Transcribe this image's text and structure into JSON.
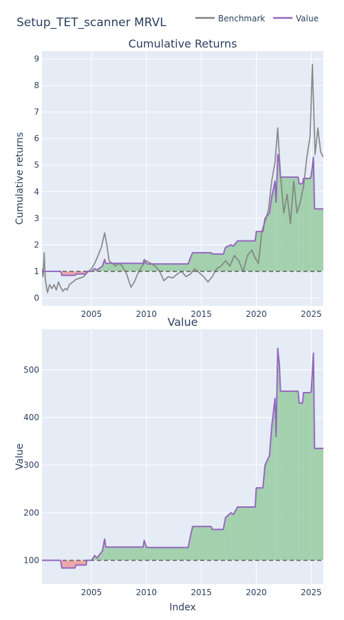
{
  "figure": {
    "title": "Setup_TET_scanner MRVL"
  },
  "legend": {
    "placement": "top-right",
    "items": [
      {
        "name": "Benchmark",
        "color": "#808080"
      },
      {
        "name": "Value",
        "color": "#9467bd"
      }
    ]
  },
  "colors": {
    "plot_bg": "#e5ecf6",
    "grid": "#ffffff",
    "gain_fill": "#9fcfa9",
    "loss_fill": "#eda2a6",
    "benchmark": "#808080",
    "value": "#9467bd",
    "baseline": "#666666",
    "text": "#2a3f5f"
  },
  "chart_data": [
    {
      "type": "line",
      "title": "Cumulative Returns",
      "ylabel": "Cumulative returns",
      "xlabel": "",
      "xlim": [
        2000.5,
        2026.1
      ],
      "ylim": [
        -0.3,
        9.3
      ],
      "yticks": [
        0,
        1,
        2,
        3,
        4,
        5,
        6,
        7,
        8,
        9
      ],
      "xticks": [
        2005,
        2010,
        2015,
        2020,
        2025
      ],
      "baseline": 1,
      "grid": true,
      "fill_between_value_and_baseline": true,
      "series": [
        {
          "name": "Benchmark",
          "x": [
            2000.5,
            2000.6,
            2000.7,
            2000.8,
            2001.0,
            2001.2,
            2001.4,
            2001.6,
            2001.8,
            2002.0,
            2002.2,
            2002.4,
            2002.6,
            2002.8,
            2003.0,
            2003.3,
            2003.6,
            2004.0,
            2004.3,
            2004.6,
            2005.0,
            2005.3,
            2005.6,
            2005.9,
            2006.2,
            2006.4,
            2006.6,
            2006.9,
            2007.2,
            2007.5,
            2007.8,
            2008.2,
            2008.6,
            2008.9,
            2009.2,
            2009.6,
            2010.0,
            2010.4,
            2010.8,
            2011.2,
            2011.6,
            2012.0,
            2012.4,
            2012.8,
            2013.2,
            2013.6,
            2014.0,
            2014.4,
            2014.8,
            2015.2,
            2015.6,
            2016.0,
            2016.4,
            2016.8,
            2017.2,
            2017.6,
            2018.0,
            2018.4,
            2018.8,
            2019.2,
            2019.6,
            2019.9,
            2020.2,
            2020.5,
            2020.8,
            2021.1,
            2021.4,
            2021.7,
            2021.95,
            2022.2,
            2022.5,
            2022.8,
            2023.1,
            2023.4,
            2023.7,
            2024.0,
            2024.3,
            2024.6,
            2024.9,
            2025.1,
            2025.35,
            2025.6,
            2025.85,
            2026.1
          ],
          "y": [
            1.1,
            0.8,
            1.7,
            0.7,
            0.2,
            0.5,
            0.35,
            0.5,
            0.3,
            0.6,
            0.4,
            0.25,
            0.35,
            0.3,
            0.5,
            0.6,
            0.7,
            0.75,
            0.8,
            0.95,
            1.1,
            1.3,
            1.6,
            1.9,
            2.45,
            2.0,
            1.4,
            1.3,
            1.2,
            1.3,
            1.2,
            0.9,
            0.4,
            0.6,
            0.9,
            1.2,
            1.4,
            1.3,
            1.2,
            1.0,
            0.65,
            0.8,
            0.75,
            0.9,
            1.0,
            0.8,
            0.9,
            1.1,
            0.95,
            0.8,
            0.6,
            0.8,
            1.1,
            1.2,
            1.4,
            1.2,
            1.6,
            1.4,
            1.0,
            1.6,
            1.8,
            1.5,
            1.3,
            2.5,
            2.9,
            3.3,
            4.4,
            5.1,
            6.4,
            4.6,
            3.2,
            3.9,
            2.8,
            4.4,
            3.2,
            3.6,
            4.2,
            5.3,
            6.1,
            8.8,
            5.4,
            6.4,
            5.5,
            5.3
          ]
        },
        {
          "name": "Value",
          "x": [
            2000.5,
            2002.2,
            2002.3,
            2003.5,
            2003.6,
            2004.5,
            2004.6,
            2005.0,
            2005.3,
            2005.5,
            2006.0,
            2006.2,
            2006.3,
            2009.7,
            2009.8,
            2010.0,
            2010.1,
            2013.8,
            2014.0,
            2014.2,
            2015.9,
            2016.0,
            2017.0,
            2017.2,
            2017.7,
            2017.9,
            2018.3,
            2019.9,
            2020.0,
            2020.6,
            2020.8,
            2021.2,
            2021.4,
            2021.7,
            2021.8,
            2021.95,
            2022.1,
            2022.2,
            2023.8,
            2023.9,
            2024.2,
            2024.3,
            2024.9,
            2025.0,
            2025.2,
            2025.3,
            2026.1
          ],
          "y": [
            1.0,
            1.0,
            0.85,
            0.85,
            0.9,
            0.9,
            1.0,
            1.0,
            1.1,
            1.05,
            1.2,
            1.45,
            1.3,
            1.3,
            1.45,
            1.3,
            1.28,
            1.28,
            1.5,
            1.7,
            1.7,
            1.65,
            1.65,
            1.9,
            2.0,
            1.95,
            2.15,
            2.15,
            2.5,
            2.5,
            3.0,
            3.2,
            3.8,
            4.4,
            3.6,
            5.4,
            5.1,
            4.55,
            4.55,
            4.3,
            4.3,
            4.5,
            4.5,
            4.6,
            5.3,
            3.35,
            3.35
          ]
        }
      ]
    },
    {
      "type": "line",
      "title": "Value",
      "ylabel": "Value",
      "xlabel": "Index",
      "xlim": [
        2000.5,
        2026.1
      ],
      "ylim": [
        50,
        585
      ],
      "yticks": [
        100,
        200,
        300,
        400,
        500
      ],
      "xticks": [
        2005,
        2010,
        2015,
        2020,
        2025
      ],
      "baseline": 100,
      "grid": true,
      "fill_between_value_and_baseline": true,
      "series": [
        {
          "name": "Value",
          "x": [
            2000.5,
            2002.2,
            2002.3,
            2003.5,
            2003.6,
            2004.5,
            2004.6,
            2005.0,
            2005.3,
            2005.5,
            2006.0,
            2006.2,
            2006.3,
            2009.7,
            2009.8,
            2010.0,
            2010.1,
            2013.8,
            2014.0,
            2014.2,
            2015.9,
            2016.0,
            2017.0,
            2017.2,
            2017.7,
            2017.9,
            2018.3,
            2019.9,
            2020.0,
            2020.6,
            2020.8,
            2021.2,
            2021.4,
            2021.7,
            2021.8,
            2021.95,
            2022.1,
            2022.2,
            2023.8,
            2023.9,
            2024.2,
            2024.3,
            2024.9,
            2025.0,
            2025.2,
            2025.3,
            2026.1
          ],
          "y": [
            100,
            100,
            84,
            84,
            90,
            90,
            100,
            100,
            110,
            105,
            120,
            145,
            128,
            128,
            142,
            128,
            127,
            127,
            150,
            171,
            171,
            165,
            165,
            190,
            200,
            196,
            212,
            212,
            252,
            252,
            300,
            320,
            380,
            440,
            360,
            545,
            510,
            455,
            455,
            430,
            430,
            452,
            452,
            455,
            535,
            335,
            335
          ]
        }
      ]
    }
  ]
}
